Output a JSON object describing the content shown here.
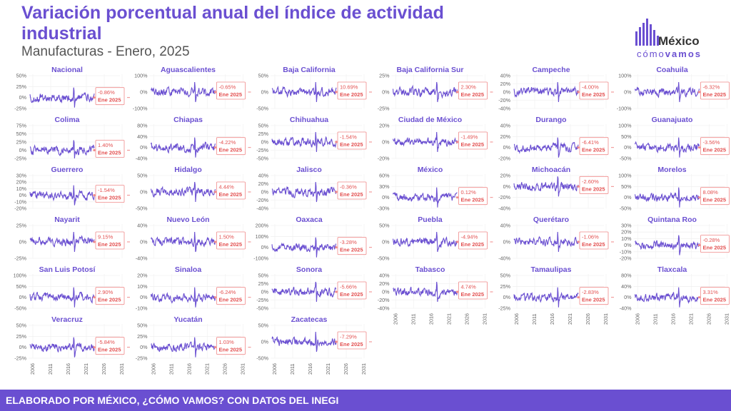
{
  "header": {
    "title": "Variación porcentual anual del índice de actividad industrial",
    "subtitle": "Manufacturas - Enero, 2025"
  },
  "logo": {
    "main": "México",
    "sub_light": "cómo",
    "sub_bold": "vamos"
  },
  "footer": {
    "text": "ELABORADO POR MÉXICO, ¿CÓMO VAMOS? CON DATOS DEL INEGI"
  },
  "colors": {
    "line": "#6a4fd1",
    "label_border": "#f08a8a",
    "label_text": "#e35050",
    "footer_bg": "#6a4fd1"
  },
  "chart_data": [
    {
      "type": "line",
      "title": "Nacional",
      "latest_label": "-0.86%",
      "date_label": "Ene 2025",
      "yticks": [
        "50%",
        "25%",
        "0%",
        "-25%"
      ],
      "xticks": []
    },
    {
      "type": "line",
      "title": "Aguascalientes",
      "latest_label": "-0.65%",
      "date_label": "Ene 2025",
      "yticks": [
        "100%",
        "0%",
        "-100%"
      ],
      "xticks": []
    },
    {
      "type": "line",
      "title": "Baja California",
      "latest_label": "10.69%",
      "date_label": "Ene 2025",
      "yticks": [
        "50%",
        "0%",
        "-50%"
      ],
      "xticks": []
    },
    {
      "type": "line",
      "title": "Baja California Sur",
      "latest_label": "2.30%",
      "date_label": "Ene 2025",
      "yticks": [
        "25%",
        "0%",
        "-25%"
      ],
      "xticks": []
    },
    {
      "type": "line",
      "title": "Campeche",
      "latest_label": "-4.00%",
      "date_label": "Ene 2025",
      "yticks": [
        "40%",
        "20%",
        "0%",
        "-20%",
        "-40%"
      ],
      "xticks": []
    },
    {
      "type": "line",
      "title": "Coahuila",
      "latest_label": "-6.32%",
      "date_label": "Ene 2025",
      "yticks": [
        "100%",
        "0%",
        "-100%"
      ],
      "xticks": []
    },
    {
      "type": "line",
      "title": "Colima",
      "latest_label": "1.40%",
      "date_label": "Ene 2025",
      "yticks": [
        "75%",
        "50%",
        "25%",
        "0%",
        "-25%"
      ],
      "xticks": []
    },
    {
      "type": "line",
      "title": "Chiapas",
      "latest_label": "-4.22%",
      "date_label": "Ene 2025",
      "yticks": [
        "80%",
        "40%",
        "0%",
        "-40%"
      ],
      "xticks": []
    },
    {
      "type": "line",
      "title": "Chihuahua",
      "latest_label": "-1.54%",
      "date_label": "Ene 2025",
      "yticks": [
        "50%",
        "25%",
        "0%",
        "-25%",
        "-50%"
      ],
      "xticks": []
    },
    {
      "type": "line",
      "title": "Ciudad de México",
      "latest_label": "-1.49%",
      "date_label": "Ene 2025",
      "yticks": [
        "20%",
        "0%",
        "-20%"
      ],
      "xticks": []
    },
    {
      "type": "line",
      "title": "Durango",
      "latest_label": "-6.41%",
      "date_label": "Ene 2025",
      "yticks": [
        "40%",
        "20%",
        "0%",
        "-20%"
      ],
      "xticks": []
    },
    {
      "type": "line",
      "title": "Guanajuato",
      "latest_label": "-3.56%",
      "date_label": "Ene 2025",
      "yticks": [
        "100%",
        "50%",
        "0%",
        "-50%"
      ],
      "xticks": []
    },
    {
      "type": "line",
      "title": "Guerrero",
      "latest_label": "-1.54%",
      "date_label": "Ene 2025",
      "yticks": [
        "30%",
        "20%",
        "10%",
        "0%",
        "-10%",
        "-20%"
      ],
      "xticks": []
    },
    {
      "type": "line",
      "title": "Hidalgo",
      "latest_label": "4.44%",
      "date_label": "Ene 2025",
      "yticks": [
        "50%",
        "0%",
        "-50%"
      ],
      "xticks": []
    },
    {
      "type": "line",
      "title": "Jalisco",
      "latest_label": "-0.36%",
      "date_label": "Ene 2025",
      "yticks": [
        "40%",
        "20%",
        "0%",
        "-20%",
        "-40%"
      ],
      "xticks": []
    },
    {
      "type": "line",
      "title": "México",
      "latest_label": "0.12%",
      "date_label": "Ene 2025",
      "yticks": [
        "60%",
        "30%",
        "0%",
        "-30%"
      ],
      "xticks": []
    },
    {
      "type": "line",
      "title": "Michoacán",
      "latest_label": "-2.60%",
      "date_label": "Ene 2025",
      "yticks": [
        "20%",
        "0%",
        "-20%",
        "-40%"
      ],
      "xticks": []
    },
    {
      "type": "line",
      "title": "Morelos",
      "latest_label": "8.08%",
      "date_label": "Ene 2025",
      "yticks": [
        "100%",
        "50%",
        "0%",
        "-50%"
      ],
      "xticks": []
    },
    {
      "type": "line",
      "title": "Nayarit",
      "latest_label": "9.15%",
      "date_label": "Ene 2025",
      "yticks": [
        "25%",
        "0%",
        "-25%"
      ],
      "xticks": []
    },
    {
      "type": "line",
      "title": "Nuevo León",
      "latest_label": "1.50%",
      "date_label": "Ene 2025",
      "yticks": [
        "40%",
        "0%",
        "-40%"
      ],
      "xticks": []
    },
    {
      "type": "line",
      "title": "Oaxaca",
      "latest_label": "-3.28%",
      "date_label": "Ene 2025",
      "yticks": [
        "200%",
        "100%",
        "0%",
        "-100%"
      ],
      "xticks": []
    },
    {
      "type": "line",
      "title": "Puebla",
      "latest_label": "-4.94%",
      "date_label": "Ene 2025",
      "yticks": [
        "50%",
        "0%",
        "-50%"
      ],
      "xticks": []
    },
    {
      "type": "line",
      "title": "Querétaro",
      "latest_label": "-1.06%",
      "date_label": "Ene 2025",
      "yticks": [
        "40%",
        "0%",
        "-40%"
      ],
      "xticks": []
    },
    {
      "type": "line",
      "title": "Quintana Roo",
      "latest_label": "-0.28%",
      "date_label": "Ene 2025",
      "yticks": [
        "30%",
        "20%",
        "10%",
        "0%",
        "-10%",
        "-20%"
      ],
      "xticks": []
    },
    {
      "type": "line",
      "title": "San Luis Potosí",
      "latest_label": "2.90%",
      "date_label": "Ene 2025",
      "yticks": [
        "100%",
        "50%",
        "0%",
        "-50%"
      ],
      "xticks": []
    },
    {
      "type": "line",
      "title": "Sinaloa",
      "latest_label": "-6.24%",
      "date_label": "Ene 2025",
      "yticks": [
        "20%",
        "10%",
        "0%",
        "-10%"
      ],
      "xticks": []
    },
    {
      "type": "line",
      "title": "Sonora",
      "latest_label": "-5.66%",
      "date_label": "Ene 2025",
      "yticks": [
        "50%",
        "25%",
        "0%",
        "-25%",
        "-50%"
      ],
      "xticks": []
    },
    {
      "type": "line",
      "title": "Tabasco",
      "latest_label": "4.74%",
      "date_label": "Ene 2025",
      "yticks": [
        "40%",
        "20%",
        "0%",
        "-20%",
        "-40%"
      ],
      "xticks": [
        "2006",
        "2011",
        "2016",
        "2021",
        "2026",
        "2031"
      ]
    },
    {
      "type": "line",
      "title": "Tamaulipas",
      "latest_label": "-2.83%",
      "date_label": "Ene 2025",
      "yticks": [
        "50%",
        "25%",
        "0%",
        "-25%"
      ],
      "xticks": [
        "2006",
        "2011",
        "2016",
        "2021",
        "2026",
        "2031"
      ]
    },
    {
      "type": "line",
      "title": "Tlaxcala",
      "latest_label": "3.31%",
      "date_label": "Ene 2025",
      "yticks": [
        "80%",
        "40%",
        "0%",
        "-40%"
      ],
      "xticks": [
        "2006",
        "2011",
        "2016",
        "2021",
        "2026",
        "2031"
      ]
    },
    {
      "type": "line",
      "title": "Veracruz",
      "latest_label": "-5.84%",
      "date_label": "Ene 2025",
      "yticks": [
        "50%",
        "25%",
        "0%",
        "-25%"
      ],
      "xticks": [
        "2006",
        "2011",
        "2016",
        "2021",
        "2026",
        "2031"
      ]
    },
    {
      "type": "line",
      "title": "Yucatán",
      "latest_label": "1.03%",
      "date_label": "Ene 2025",
      "yticks": [
        "50%",
        "25%",
        "0%",
        "-25%"
      ],
      "xticks": [
        "2006",
        "2011",
        "2016",
        "2021",
        "2026",
        "2031"
      ]
    },
    {
      "type": "line",
      "title": "Zacatecas",
      "latest_label": "-7.29%",
      "date_label": "Ene 2025",
      "yticks": [
        "50%",
        "0%",
        "-50%"
      ],
      "xticks": [
        "2006",
        "2011",
        "2016",
        "2021",
        "2026",
        "2031"
      ]
    }
  ]
}
